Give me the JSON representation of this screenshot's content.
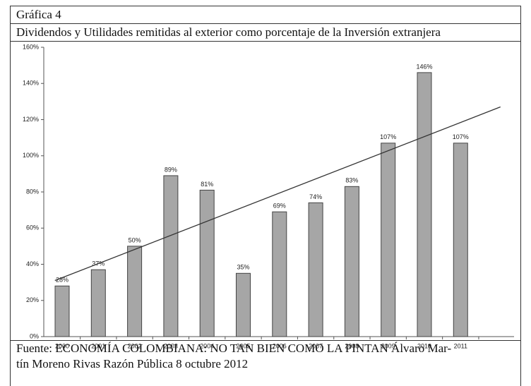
{
  "header": {
    "label": "Gráfica 4"
  },
  "chart_data": {
    "type": "bar",
    "title": "Dividendos y Utilidades remitidas al exterior como porcentaje de la Inversión extranjera",
    "categories": [
      "2000",
      "2001",
      "2002",
      "2003",
      "2004",
      "2005",
      "2006",
      "2007",
      "2008",
      "2009",
      "2010",
      "2011"
    ],
    "values": [
      28,
      37,
      50,
      89,
      81,
      35,
      69,
      74,
      83,
      107,
      146,
      107
    ],
    "value_labels": [
      "28%",
      "37%",
      "50%",
      "89%",
      "81%",
      "35%",
      "69%",
      "74%",
      "83%",
      "107%",
      "146%",
      "107%"
    ],
    "color": "#a6a6a6",
    "ylim": [
      0,
      160
    ],
    "yticks": [
      {
        "value": 0,
        "label": "0%"
      },
      {
        "value": 20,
        "label": "20%"
      },
      {
        "value": 40,
        "label": "40%"
      },
      {
        "value": 60,
        "label": "60%"
      },
      {
        "value": 80,
        "label": "80%"
      },
      {
        "value": 100,
        "label": "100%"
      },
      {
        "value": 120,
        "label": "120%"
      },
      {
        "value": 140,
        "label": "140%"
      },
      {
        "value": 160,
        "label": "160%"
      }
    ],
    "trendline": true
  },
  "source": {
    "lines": [
      "Fuente: ECONOMÍA COLOMBIANA: NO TAN BIEN COMO LA PINTAN Álvaro Mar-",
      "tín Moreno Rivas Razón Pública 8 octubre 2012"
    ]
  }
}
